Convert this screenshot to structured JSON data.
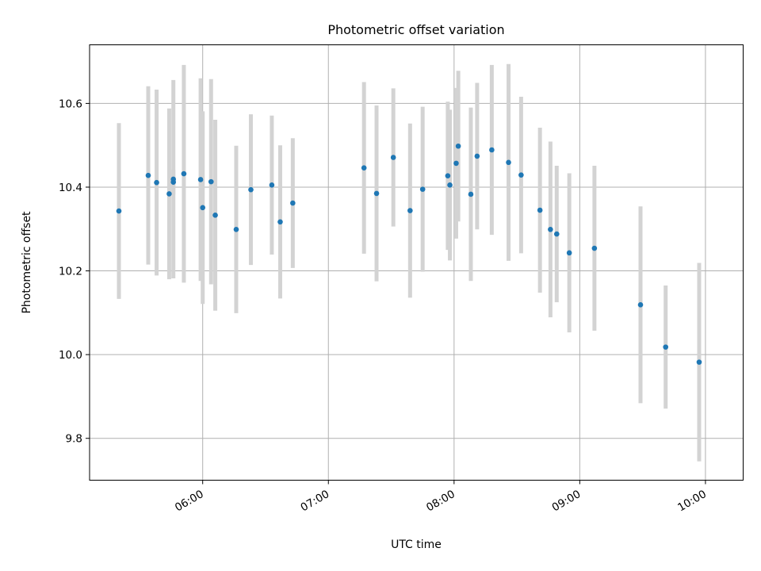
{
  "chart_data": {
    "type": "scatter",
    "title": "Photometric offset variation",
    "xlabel": "UTC time",
    "ylabel": "Photometric offset",
    "x_axis_type": "time",
    "xlim": [
      "05:06",
      "10:18"
    ],
    "ylim": [
      9.7,
      10.74
    ],
    "grid": true,
    "x_ticks": [
      "06:00",
      "07:00",
      "08:00",
      "09:00",
      "10:00"
    ],
    "y_ticks": [
      9.8,
      10.0,
      10.2,
      10.4,
      10.6
    ],
    "y_tick_labels": [
      "9.8",
      "10.0",
      "10.2",
      "10.4",
      "10.6"
    ],
    "colors": {
      "point": "#1f77b4",
      "errorbar": "#d3d3d3",
      "grid": "#b0b0b0"
    },
    "series": [
      {
        "points": [
          {
            "x": "05:20",
            "y": 10.343,
            "err": 0.21
          },
          {
            "x": "05:34",
            "y": 10.428,
            "err": 0.213
          },
          {
            "x": "05:38",
            "y": 10.411,
            "err": 0.222
          },
          {
            "x": "05:44",
            "y": 10.384,
            "err": 0.204
          },
          {
            "x": "05:46",
            "y": 10.419,
            "err": 0.237
          },
          {
            "x": "05:46",
            "y": 10.412,
            "err": 0.03
          },
          {
            "x": "05:51",
            "y": 10.432,
            "err": 0.26
          },
          {
            "x": "05:59",
            "y": 10.418,
            "err": 0.242
          },
          {
            "x": "06:00",
            "y": 10.351,
            "err": 0.23
          },
          {
            "x": "06:04",
            "y": 10.413,
            "err": 0.245
          },
          {
            "x": "06:06",
            "y": 10.333,
            "err": 0.228
          },
          {
            "x": "06:16",
            "y": 10.299,
            "err": 0.2
          },
          {
            "x": "06:23",
            "y": 10.394,
            "err": 0.18
          },
          {
            "x": "06:33",
            "y": 10.405,
            "err": 0.166
          },
          {
            "x": "06:37",
            "y": 10.317,
            "err": 0.183
          },
          {
            "x": "06:43",
            "y": 10.362,
            "err": 0.155
          },
          {
            "x": "07:17",
            "y": 10.446,
            "err": 0.205
          },
          {
            "x": "07:23",
            "y": 10.385,
            "err": 0.21
          },
          {
            "x": "07:31",
            "y": 10.471,
            "err": 0.165
          },
          {
            "x": "07:39",
            "y": 10.344,
            "err": 0.208
          },
          {
            "x": "07:45",
            "y": 10.395,
            "err": 0.197
          },
          {
            "x": "07:57",
            "y": 10.427,
            "err": 0.177
          },
          {
            "x": "07:58",
            "y": 10.405,
            "err": 0.18
          },
          {
            "x": "08:01",
            "y": 10.457,
            "err": 0.18
          },
          {
            "x": "08:02",
            "y": 10.498,
            "err": 0.18
          },
          {
            "x": "08:08",
            "y": 10.383,
            "err": 0.207
          },
          {
            "x": "08:11",
            "y": 10.474,
            "err": 0.175
          },
          {
            "x": "08:18",
            "y": 10.489,
            "err": 0.203
          },
          {
            "x": "08:26",
            "y": 10.459,
            "err": 0.235
          },
          {
            "x": "08:32",
            "y": 10.429,
            "err": 0.187
          },
          {
            "x": "08:41",
            "y": 10.345,
            "err": 0.197
          },
          {
            "x": "08:46",
            "y": 10.299,
            "err": 0.21
          },
          {
            "x": "08:49",
            "y": 10.288,
            "err": 0.163
          },
          {
            "x": "08:55",
            "y": 10.243,
            "err": 0.19
          },
          {
            "x": "09:07",
            "y": 10.254,
            "err": 0.197
          },
          {
            "x": "09:29",
            "y": 10.119,
            "err": 0.235
          },
          {
            "x": "09:41",
            "y": 10.018,
            "err": 0.147
          },
          {
            "x": "09:57",
            "y": 9.982,
            "err": 0.237
          }
        ]
      }
    ]
  }
}
